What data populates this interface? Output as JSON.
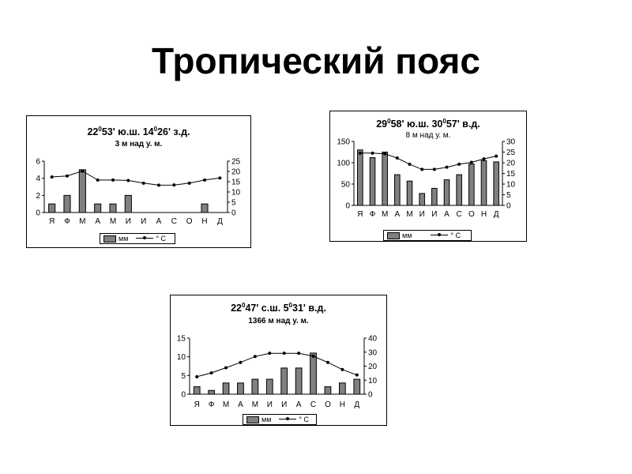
{
  "page": {
    "title": "Тропический пояс"
  },
  "chart_data": [
    {
      "type": "bar",
      "coord": {
        "lat_deg": "22",
        "lat_min": "53' ю.ш.",
        "lon_deg": "14",
        "lon_min": "26' з.д."
      },
      "elevation": "3 м над у. м.",
      "categories": [
        "Я",
        "Ф",
        "М",
        "А",
        "М",
        "И",
        "И",
        "А",
        "С",
        "О",
        "Н",
        "Д"
      ],
      "y_left": {
        "ylim": [
          0,
          6
        ],
        "ticks": [
          0,
          2,
          4,
          6
        ]
      },
      "y_right": {
        "ylim": [
          0,
          25
        ],
        "ticks": [
          0,
          5,
          10,
          15,
          20,
          25
        ]
      },
      "series": [
        {
          "name": "мм",
          "type": "bar",
          "values": [
            1,
            2,
            5,
            1,
            1,
            2,
            0,
            0,
            0,
            0,
            1,
            0
          ]
        },
        {
          "name": "° С",
          "type": "line",
          "values": [
            17.3,
            17.8,
            20.2,
            15.8,
            15.8,
            15.6,
            14.3,
            13.3,
            13.4,
            14.3,
            15.8,
            16.8
          ]
        }
      ],
      "legend": "bottom"
    },
    {
      "type": "bar",
      "coord": {
        "lat_deg": "29",
        "lat_min": "58' ю.ш.",
        "lon_deg": "30",
        "lon_min": "57' в.д."
      },
      "elevation": "8 м над у. м.",
      "categories": [
        "Я",
        "Ф",
        "М",
        "А",
        "М",
        "И",
        "И",
        "А",
        "С",
        "О",
        "Н",
        "Д"
      ],
      "y_left": {
        "ylim": [
          0,
          150
        ],
        "ticks": [
          0,
          50,
          100,
          150
        ]
      },
      "y_right": {
        "ylim": [
          0,
          30
        ],
        "ticks": [
          0,
          5,
          10,
          15,
          20,
          25,
          30
        ]
      },
      "series": [
        {
          "name": "мм",
          "type": "bar",
          "values": [
            130,
            112,
            125,
            72,
            57,
            28,
            40,
            60,
            72,
            97,
            105,
            102
          ]
        },
        {
          "name": "° С",
          "type": "line",
          "values": [
            24.5,
            24.5,
            24.2,
            22.2,
            19.3,
            16.9,
            16.9,
            17.9,
            19.3,
            20.2,
            21.8,
            23.1
          ]
        }
      ],
      "legend": "bottom"
    },
    {
      "type": "bar",
      "coord": {
        "lat_deg": "22",
        "lat_min": "47' с.ш.",
        "lon_deg": "5",
        "lon_min": "31' в.д."
      },
      "elevation": "1366 м над у. м.",
      "categories": [
        "Я",
        "Ф",
        "М",
        "А",
        "М",
        "И",
        "И",
        "А",
        "С",
        "О",
        "Н",
        "Д"
      ],
      "y_left": {
        "ylim": [
          0,
          15
        ],
        "ticks": [
          0,
          5,
          10,
          15
        ]
      },
      "y_right": {
        "ylim": [
          0,
          40
        ],
        "ticks": [
          0,
          10,
          20,
          30,
          40
        ]
      },
      "series": [
        {
          "name": "мм",
          "type": "bar",
          "values": [
            2,
            1,
            3,
            3,
            4,
            4,
            7,
            7,
            11,
            2,
            3,
            4
          ]
        },
        {
          "name": "° С",
          "type": "line",
          "values": [
            12.5,
            15.2,
            18.9,
            22.7,
            26.9,
            29.2,
            29.2,
            29.2,
            27.1,
            22.7,
            17.6,
            13.7
          ]
        }
      ],
      "legend": "bottom"
    }
  ]
}
